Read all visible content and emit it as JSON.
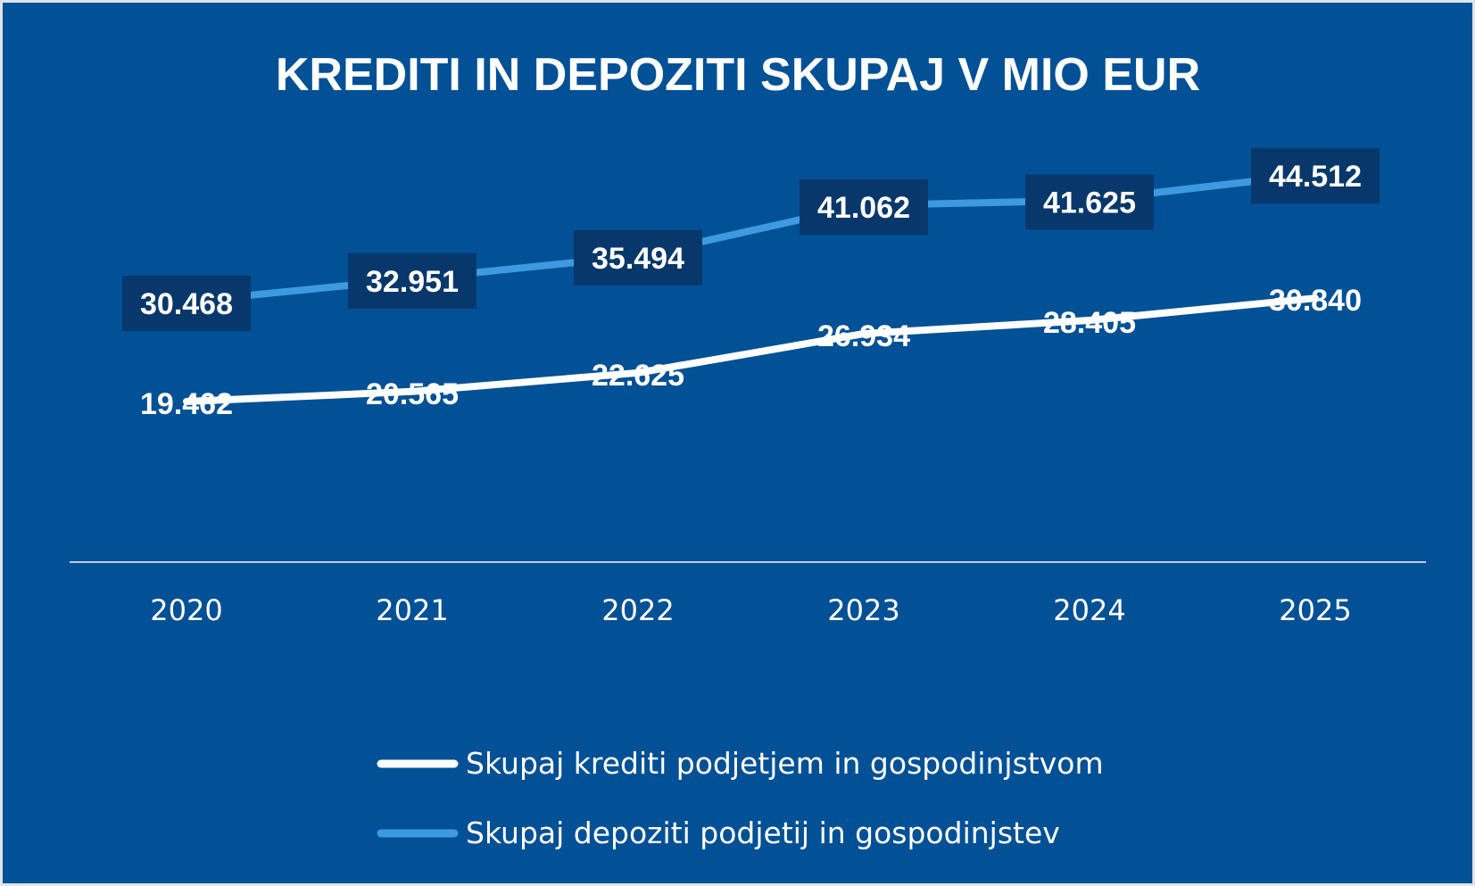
{
  "chart_data": {
    "type": "line",
    "title": "KREDITI IN DEPOZITI SKUPAJ V MIO EUR",
    "categories": [
      "2020",
      "2021",
      "2022",
      "2023",
      "2024",
      "2025"
    ],
    "series": [
      {
        "name": "Skupaj krediti podjetjem in gospodinjstvom",
        "values": [
          19462,
          20565,
          22625,
          26934,
          28405,
          30840
        ],
        "labels": [
          "19.462",
          "20.565",
          "22.625",
          "26.934",
          "28.405",
          "30.840"
        ],
        "color": "#ffffff",
        "label_boxed": false
      },
      {
        "name": "Skupaj depoziti podjetij in gospodinjstev",
        "values": [
          30468,
          32951,
          35494,
          41062,
          41625,
          44512
        ],
        "labels": [
          "30.468",
          "32.951",
          "35.494",
          "41.062",
          "41.625",
          "44.512"
        ],
        "color": "#3e9ae0",
        "label_boxed": true
      }
    ],
    "xlabel": "",
    "ylabel": "",
    "y_axis_visible": false,
    "grid": false,
    "legend_position": "bottom",
    "colors": {
      "background": "#025096",
      "label_box": "#08386b",
      "axis_line": "#c3cde0",
      "text": "#ffffff"
    }
  }
}
